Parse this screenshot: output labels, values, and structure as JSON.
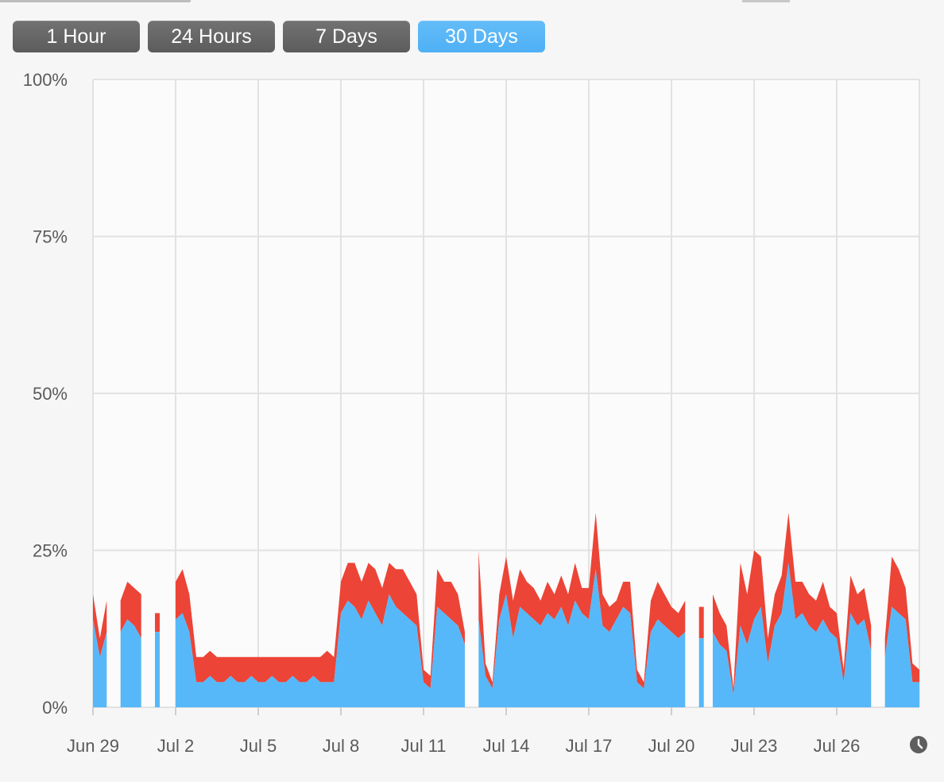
{
  "time_range": {
    "buttons": [
      {
        "label": "1 Hour",
        "active": false
      },
      {
        "label": "24 Hours",
        "active": false
      },
      {
        "label": "7 Days",
        "active": false
      },
      {
        "label": "30 Days",
        "active": true
      }
    ],
    "accent_color": "#55b6f8",
    "inactive_color": "#666666"
  },
  "history_icon": "clock-icon",
  "chart_data": {
    "type": "area",
    "stacked": true,
    "ylim": [
      0,
      100
    ],
    "yticks": [
      "100%",
      "75%",
      "50%",
      "25%",
      "0%"
    ],
    "ytick_values": [
      100,
      75,
      50,
      25,
      0
    ],
    "xlim": [
      0,
      30
    ],
    "xtick_labels": [
      "Jun 29",
      "Jul 2",
      "Jul 5",
      "Jul 8",
      "Jul 11",
      "Jul 14",
      "Jul 17",
      "Jul 20",
      "Jul 23",
      "Jul 26"
    ],
    "xtick_values": [
      0,
      3,
      6,
      9,
      12,
      15,
      18,
      21,
      24,
      27
    ],
    "grid": true,
    "colors": {
      "series_1": "#56b8f8",
      "series_2": "#ec4436"
    },
    "x": [
      0,
      0.25,
      0.5,
      0.75,
      1,
      1.25,
      1.5,
      1.75,
      2,
      2.25,
      2.5,
      2.75,
      3,
      3.25,
      3.5,
      3.75,
      4,
      4.25,
      4.5,
      4.75,
      5,
      5.25,
      5.5,
      5.75,
      6,
      6.25,
      6.5,
      6.75,
      7,
      7.25,
      7.5,
      7.75,
      8,
      8.25,
      8.5,
      8.75,
      9,
      9.25,
      9.5,
      9.75,
      10,
      10.25,
      10.5,
      10.75,
      11,
      11.25,
      11.5,
      11.75,
      12,
      12.25,
      12.5,
      12.75,
      13,
      13.25,
      13.5,
      13.75,
      14,
      14.25,
      14.5,
      14.75,
      15,
      15.25,
      15.5,
      15.75,
      16,
      16.25,
      16.5,
      16.75,
      17,
      17.25,
      17.5,
      17.75,
      18,
      18.25,
      18.5,
      18.75,
      19,
      19.25,
      19.5,
      19.75,
      20,
      20.25,
      20.5,
      20.75,
      21,
      21.25,
      21.5,
      21.75,
      22,
      22.25,
      22.5,
      22.75,
      23,
      23.25,
      23.5,
      23.75,
      24,
      24.25,
      24.5,
      24.75,
      25,
      25.25,
      25.5,
      25.75,
      26,
      26.25,
      26.5,
      26.75,
      27,
      27.25,
      27.5,
      27.75,
      28,
      28.25,
      28.5,
      28.75,
      29,
      29.25,
      29.5,
      29.75,
      30
    ],
    "series": [
      {
        "values": [
          14,
          8,
          12,
          null,
          12,
          14,
          13,
          11,
          null,
          12,
          null,
          null,
          14,
          15,
          12,
          4,
          4,
          5,
          4,
          4,
          5,
          4,
          4,
          5,
          4,
          4,
          5,
          4,
          4,
          5,
          4,
          4,
          5,
          4,
          4,
          4,
          15,
          17,
          16,
          14,
          17,
          15,
          13,
          18,
          16,
          15,
          14,
          13,
          4,
          3,
          16,
          15,
          14,
          13,
          10,
          null,
          14,
          5,
          3,
          14,
          18,
          11,
          16,
          15,
          14,
          13,
          15,
          14,
          16,
          13,
          17,
          15,
          14,
          22,
          13,
          12,
          14,
          16,
          15,
          4,
          3,
          12,
          14,
          13,
          12,
          11,
          12,
          null,
          11,
          null,
          12,
          10,
          9,
          2,
          13,
          10,
          14,
          16,
          7,
          13,
          15,
          23,
          14,
          15,
          13,
          12,
          14,
          12,
          11,
          4,
          15,
          13,
          14,
          9,
          null,
          8,
          16,
          15,
          14,
          4,
          4
        ],
        "name": ""
      },
      {
        "values": [
          4,
          3,
          5,
          null,
          5,
          6,
          6,
          7,
          null,
          3,
          null,
          null,
          6,
          7,
          6,
          4,
          4,
          4,
          4,
          4,
          3,
          4,
          4,
          3,
          4,
          4,
          3,
          4,
          4,
          3,
          4,
          4,
          3,
          4,
          5,
          4,
          5,
          6,
          7,
          6,
          6,
          7,
          6,
          5,
          6,
          7,
          6,
          5,
          2,
          2,
          6,
          5,
          6,
          5,
          2,
          null,
          11,
          2,
          1,
          4,
          6,
          6,
          6,
          5,
          5,
          4,
          5,
          4,
          5,
          5,
          6,
          4,
          5,
          9,
          5,
          4,
          3,
          4,
          5,
          2,
          1,
          5,
          6,
          5,
          4,
          4,
          5,
          null,
          5,
          null,
          6,
          5,
          4,
          1,
          10,
          8,
          11,
          8,
          4,
          5,
          6,
          8,
          6,
          5,
          5,
          5,
          6,
          4,
          4,
          2,
          6,
          5,
          5,
          4,
          null,
          3,
          8,
          7,
          5,
          3,
          2
        ],
        "name": ""
      }
    ]
  }
}
